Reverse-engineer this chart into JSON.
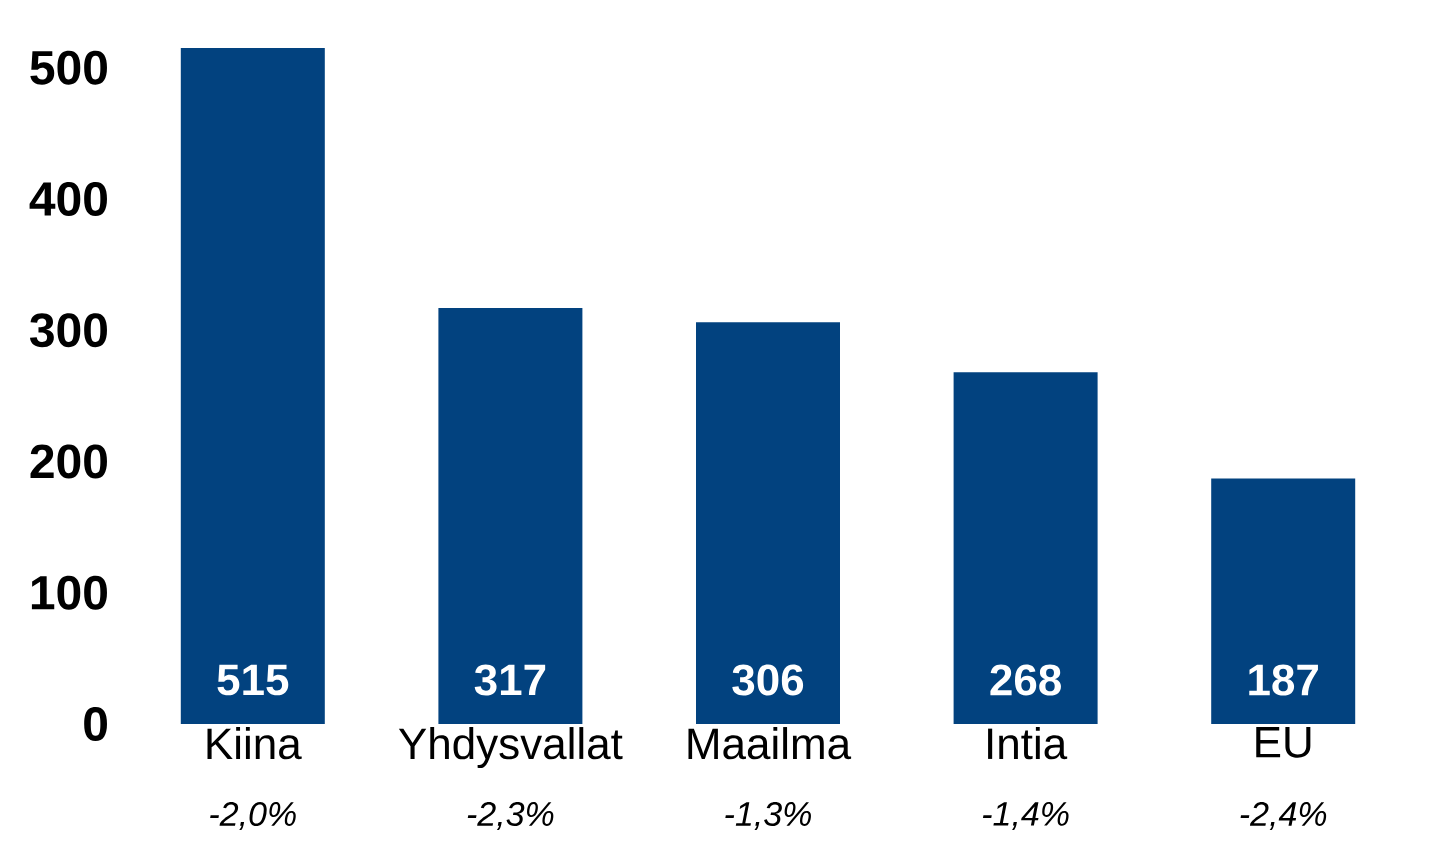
{
  "chart_data": {
    "type": "bar",
    "categories": [
      "Kiina",
      "Yhdysvallat",
      "Maailma",
      "Intia",
      "EU"
    ],
    "values": [
      515,
      317,
      306,
      268,
      187
    ],
    "value_labels": [
      "515",
      "317",
      "306",
      "268",
      "187"
    ],
    "color": "#02427f",
    "ylim": [
      0,
      515
    ],
    "yticks": [
      0,
      100,
      200,
      300,
      400,
      500
    ],
    "annotations": [
      "-2,0%",
      "-2,3%",
      "-1,3%",
      "-1,4%",
      "-2,4%"
    ]
  }
}
